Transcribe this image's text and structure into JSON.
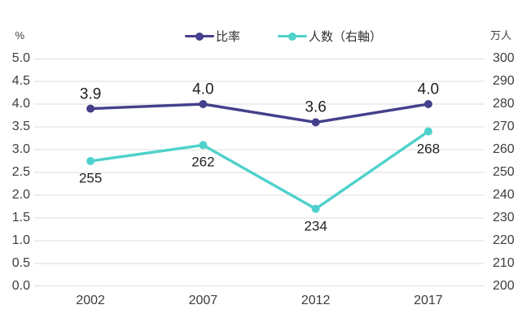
{
  "chart_data": {
    "type": "line",
    "grid": true,
    "grid_color": "#dcdcdc",
    "legend_position": "top",
    "categories": [
      "2002",
      "2007",
      "2012",
      "2017"
    ],
    "left_axis": {
      "unit": "%",
      "min": 0,
      "max": 5,
      "step": 0.5,
      "ticks": [
        "5.0",
        "4.5",
        "4.0",
        "3.5",
        "3.0",
        "2.5",
        "2.0",
        "1.5",
        "1.0",
        "0.5",
        "0.0"
      ]
    },
    "right_axis": {
      "unit": "万人",
      "min": 200,
      "max": 300,
      "step": 10,
      "ticks": [
        "300",
        "290",
        "280",
        "270",
        "260",
        "250",
        "240",
        "230",
        "220",
        "210",
        "200"
      ]
    },
    "series": [
      {
        "key": "ratio",
        "name": "比率",
        "axis": "left",
        "color": "#45408c",
        "values": [
          3.9,
          4.0,
          3.6,
          4.0
        ],
        "labels": [
          "3.9",
          "4.0",
          "3.6",
          "4.0"
        ],
        "label_position": "above"
      },
      {
        "key": "count",
        "name": "人数（右軸）",
        "axis": "right",
        "color": "#4fd1cc",
        "values": [
          255,
          262,
          234,
          268
        ],
        "labels": [
          "255",
          "262",
          "234",
          "268"
        ],
        "label_position": "below"
      }
    ]
  }
}
